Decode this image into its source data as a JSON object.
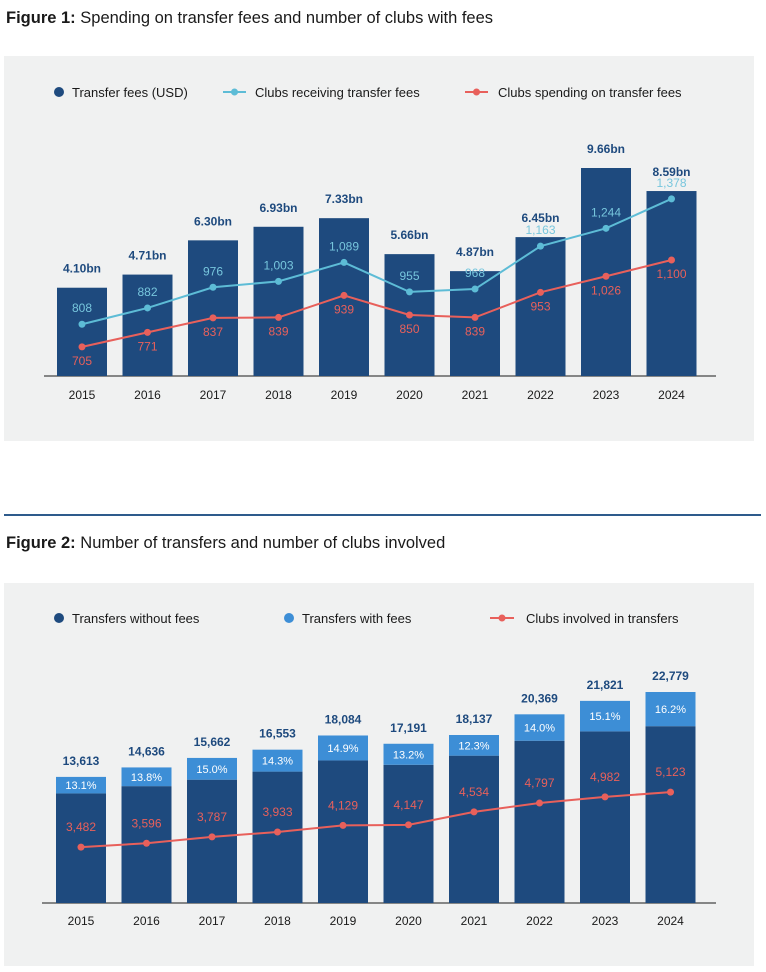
{
  "figure1": {
    "title_bold": "Figure 1:",
    "title_rest": " Spending on transfer fees and number of clubs with fees",
    "colors": {
      "bar": "#1e4a7e",
      "line_receiving": "#5dbcd6",
      "line_spending": "#e8605b"
    },
    "legend": [
      "Transfer fees (USD)",
      "Clubs receiving transfer fees",
      "Clubs spending on transfer fees"
    ],
    "chart_data": {
      "type": "bar",
      "categories": [
        "2015",
        "2016",
        "2017",
        "2018",
        "2019",
        "2020",
        "2021",
        "2022",
        "2023",
        "2024"
      ],
      "series": [
        {
          "name": "Transfer fees (USD)",
          "kind": "bar",
          "unit": "bn USD",
          "values": [
            4.1,
            4.71,
            6.3,
            6.93,
            7.33,
            5.66,
            4.87,
            6.45,
            9.66,
            8.59
          ],
          "labels": [
            "4.10bn",
            "4.71bn",
            "6.30bn",
            "6.93bn",
            "7.33bn",
            "5.66bn",
            "4.87bn",
            "6.45bn",
            "9.66bn",
            "8.59bn"
          ]
        },
        {
          "name": "Clubs receiving transfer fees",
          "kind": "line",
          "values": [
            808,
            882,
            976,
            1003,
            1089,
            955,
            968,
            1163,
            1244,
            1378
          ],
          "labels": [
            "808",
            "882",
            "976",
            "1,003",
            "1,089",
            "955",
            "968",
            "1,163",
            "1,244",
            "1,378"
          ]
        },
        {
          "name": "Clubs spending on transfer fees",
          "kind": "line",
          "values": [
            705,
            771,
            837,
            839,
            939,
            850,
            839,
            953,
            1026,
            1100
          ],
          "labels": [
            "705",
            "771",
            "837",
            "839",
            "939",
            "850",
            "839",
            "953",
            "1,026",
            "1,100"
          ]
        }
      ],
      "legend_position": "top",
      "grid": false
    }
  },
  "figure2": {
    "title_bold": "Figure 2:",
    "title_rest": " Number of transfers and number of clubs involved",
    "colors": {
      "bar_without": "#1e4a7e",
      "bar_with": "#3d8ed6",
      "line_clubs": "#e8605b"
    },
    "legend": [
      "Transfers without fees",
      "Transfers with fees",
      "Clubs involved in transfers"
    ],
    "chart_data": {
      "type": "bar",
      "stacked": true,
      "categories": [
        "2015",
        "2016",
        "2017",
        "2018",
        "2019",
        "2020",
        "2021",
        "2022",
        "2023",
        "2024"
      ],
      "totals": [
        13613,
        14636,
        15662,
        16553,
        18084,
        17191,
        18137,
        20369,
        21821,
        22779
      ],
      "total_labels": [
        "13,613",
        "14,636",
        "15,662",
        "16,553",
        "18,084",
        "17,191",
        "18,137",
        "20,369",
        "21,821",
        "22,779"
      ],
      "share_with_fees_pct": [
        13.1,
        13.8,
        15.0,
        14.3,
        14.9,
        13.2,
        12.3,
        14.0,
        15.1,
        16.2
      ],
      "share_labels": [
        "13.1%",
        "13.8%",
        "15.0%",
        "14.3%",
        "14.9%",
        "13.2%",
        "12.3%",
        "14.0%",
        "15.1%",
        "16.2%"
      ],
      "series": [
        {
          "name": "Clubs involved in transfers",
          "kind": "line",
          "values": [
            3482,
            3596,
            3787,
            3933,
            4129,
            4147,
            4534,
            4797,
            4982,
            5123
          ],
          "labels": [
            "3,482",
            "3,596",
            "3,787",
            "3,933",
            "4,129",
            "4,147",
            "4,534",
            "4,797",
            "4,982",
            "5,123"
          ]
        }
      ],
      "legend_position": "top",
      "grid": false
    }
  }
}
